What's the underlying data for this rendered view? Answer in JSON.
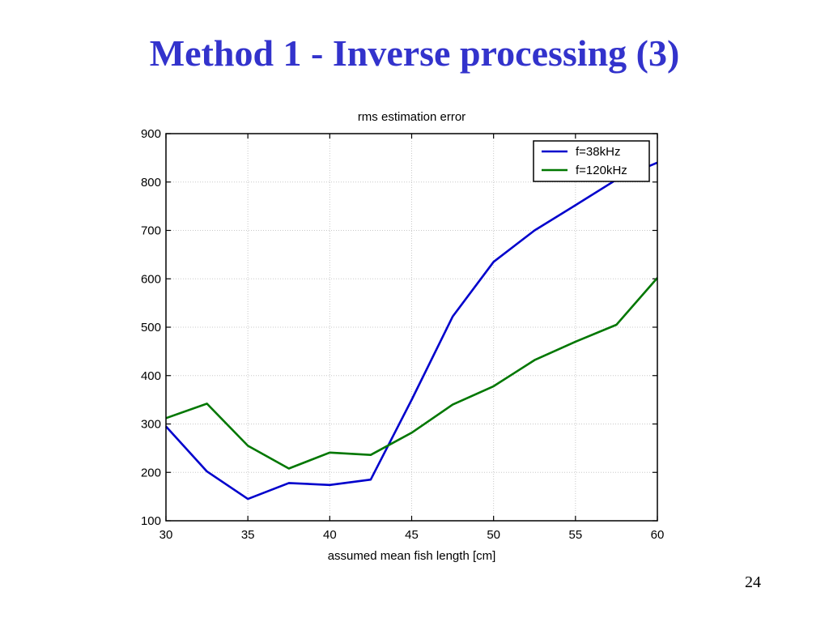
{
  "slide": {
    "title": "Method 1 - Inverse processing (3)",
    "page_number": "24"
  },
  "colors": {
    "title": "#3333cc",
    "series_38": "#0000cc",
    "series_120": "#007700",
    "grid": "#c8c8c8"
  },
  "chart_data": {
    "type": "line",
    "title": "rms estimation error",
    "xlabel": "assumed mean fish length [cm]",
    "ylabel": "",
    "xlim": [
      30,
      60
    ],
    "ylim": [
      100,
      900
    ],
    "xticks": [
      30,
      35,
      40,
      45,
      50,
      55,
      60
    ],
    "yticks": [
      100,
      200,
      300,
      400,
      500,
      600,
      700,
      800,
      900
    ],
    "grid": true,
    "legend_position": "top-right",
    "x": [
      30,
      32.5,
      35,
      37.5,
      40,
      42.5,
      45,
      47.5,
      50,
      52.5,
      55,
      57.5,
      60
    ],
    "series": [
      {
        "name": "f=38kHz",
        "color": "#0000cc",
        "values": [
          295,
          202,
          145,
          178,
          174,
          185,
          350,
          522,
          635,
          700,
          752,
          805,
          840
        ]
      },
      {
        "name": "f=120kHz",
        "color": "#007700",
        "values": [
          312,
          342,
          255,
          208,
          241,
          236,
          282,
          340,
          378,
          432,
          470,
          505,
          602
        ]
      }
    ]
  }
}
